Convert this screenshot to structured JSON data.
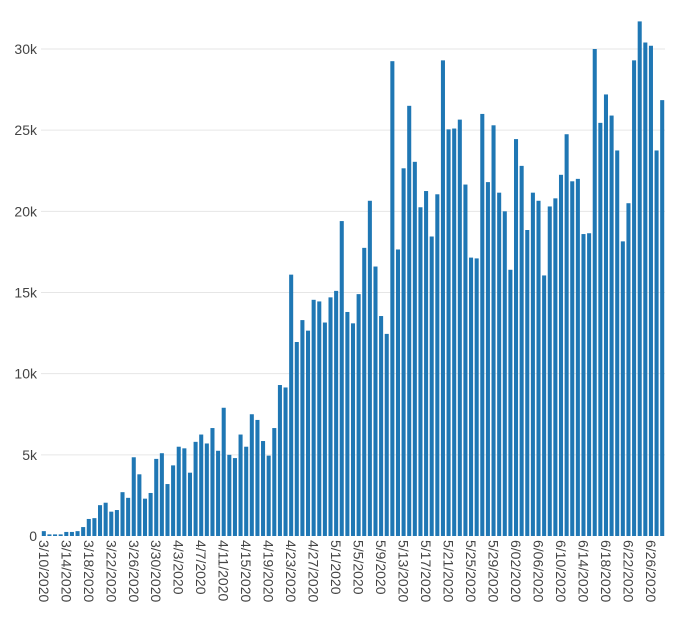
{
  "chart_data": {
    "type": "bar",
    "title": "",
    "xlabel": "",
    "ylabel": "",
    "ylim": [
      0,
      32000
    ],
    "yticks": [
      0,
      5000,
      10000,
      15000,
      20000,
      25000,
      30000
    ],
    "ytick_labels": [
      "0",
      "5k",
      "10k",
      "15k",
      "20k",
      "25k",
      "30k"
    ],
    "grid": true,
    "bar_color": "#1f77b4",
    "start_date": "2020-03-10",
    "tick_every_days": 4,
    "tick_labels": [
      "3/10/2020",
      "3/14/2020",
      "3/18/2020",
      "3/22/2020",
      "3/26/2020",
      "3/30/2020",
      "4/3/2020",
      "4/7/2020",
      "4/11/2020",
      "4/15/2020",
      "4/19/2020",
      "4/23/2020",
      "4/27/2020",
      "5/1/2020",
      "5/5/2020",
      "5/9/2020",
      "5/13/2020",
      "5/17/2020",
      "5/21/2020",
      "5/25/2020",
      "5/29/2020",
      "6/02/2020",
      "6/06/2020",
      "6/10/2020",
      "6/14/2020",
      "6/18/2020",
      "6/22/2020",
      "6/26/2020"
    ],
    "values": [
      300,
      100,
      100,
      100,
      250,
      250,
      300,
      550,
      1050,
      1100,
      1900,
      2050,
      1500,
      1600,
      2700,
      2350,
      4850,
      3800,
      2300,
      2650,
      4750,
      5100,
      3200,
      4350,
      5500,
      5400,
      3900,
      5800,
      6250,
      5700,
      6650,
      5250,
      7900,
      5000,
      4800,
      6250,
      5500,
      7500,
      7150,
      5850,
      4950,
      6650,
      9300,
      9150,
      16100,
      11950,
      13300,
      12650,
      14550,
      14450,
      13150,
      14700,
      15100,
      19400,
      13800,
      13100,
      14900,
      17750,
      20650,
      16600,
      13550,
      12450,
      29250,
      17650,
      22650,
      26500,
      23050,
      20250,
      21250,
      18450,
      21050,
      29300,
      25050,
      25100,
      25650,
      21650,
      17150,
      17100,
      26000,
      21800,
      25300,
      21150,
      20000,
      16400,
      24450,
      22800,
      18850,
      21150,
      20650,
      16050,
      20300,
      20800,
      22250,
      24750,
      21850,
      22000,
      18600,
      18650,
      30000,
      25450,
      27200,
      25900,
      23750,
      18150,
      20500,
      29300,
      31700,
      30400,
      30200,
      23750,
      26850
    ]
  }
}
